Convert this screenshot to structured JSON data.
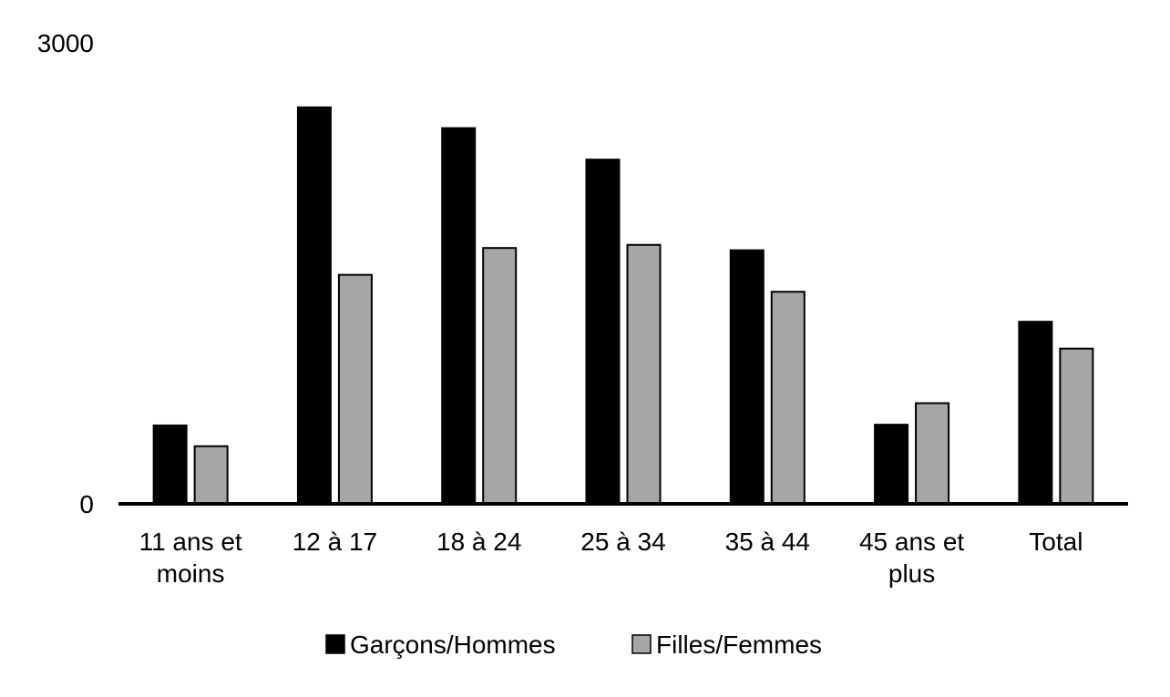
{
  "chart_data": {
    "type": "bar",
    "title": "",
    "xlabel": "",
    "ylabel": "",
    "ylim": [
      0,
      3000
    ],
    "yticks": [
      "0",
      "3000"
    ],
    "categories": [
      [
        "11 ans et",
        "moins"
      ],
      [
        "12 à 17"
      ],
      [
        "18 à 24"
      ],
      [
        "25 à 34"
      ],
      [
        "35 à 44"
      ],
      [
        "45 ans et",
        "plus"
      ],
      [
        "Total"
      ]
    ],
    "series": [
      {
        "name": "Garçons/Hommes",
        "color": "#000000",
        "values": [
          510,
          2580,
          2445,
          2240,
          1650,
          515,
          1185
        ]
      },
      {
        "name": "Filles/Femmes",
        "color": "#a6a6a6",
        "values": [
          375,
          1490,
          1665,
          1685,
          1380,
          655,
          1010
        ]
      }
    ],
    "legend": {
      "position": "bottom"
    },
    "grid": false
  }
}
